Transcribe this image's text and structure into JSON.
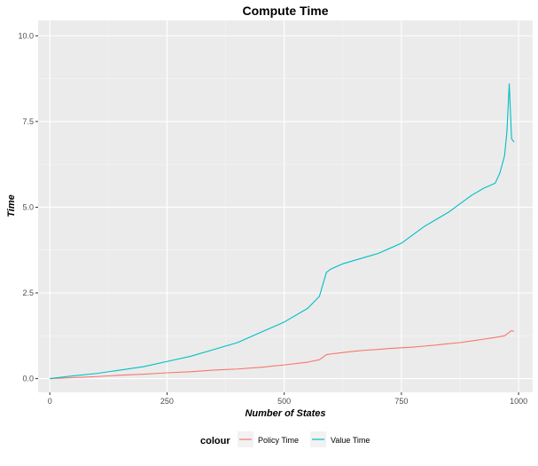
{
  "chart_data": {
    "type": "line",
    "title": "Compute Time",
    "xlabel": "Number of States",
    "ylabel": "Time",
    "xlim": [
      -25,
      1030
    ],
    "ylim": [
      -0.4,
      10.45
    ],
    "x_ticks": [
      0,
      250,
      500,
      750,
      1000
    ],
    "x_tick_labels": [
      "0",
      "250",
      "500",
      "750",
      "1000"
    ],
    "y_ticks": [
      0,
      2.5,
      5,
      7.5,
      10
    ],
    "y_tick_labels": [
      "0.0",
      "2.5",
      "5.0",
      "7.5",
      "10.0"
    ],
    "grid": true,
    "legend": {
      "title": "colour",
      "position": "bottom",
      "entries": [
        "Policy Time",
        "Value Time"
      ]
    },
    "series": [
      {
        "name": "Policy Time",
        "color": "#F8766D",
        "x": [
          0,
          50,
          100,
          150,
          200,
          250,
          300,
          350,
          400,
          450,
          500,
          550,
          575,
          590,
          600,
          625,
          650,
          675,
          700,
          725,
          750,
          775,
          800,
          825,
          850,
          875,
          900,
          925,
          950,
          970,
          980,
          985,
          990
        ],
        "y": [
          0,
          0.03,
          0.06,
          0.1,
          0.13,
          0.17,
          0.2,
          0.25,
          0.28,
          0.33,
          0.4,
          0.48,
          0.55,
          0.7,
          0.72,
          0.76,
          0.8,
          0.83,
          0.85,
          0.88,
          0.9,
          0.92,
          0.95,
          0.98,
          1.02,
          1.05,
          1.1,
          1.15,
          1.2,
          1.25,
          1.35,
          1.4,
          1.38
        ]
      },
      {
        "name": "Value Time",
        "color": "#00BFC4",
        "x": [
          0,
          50,
          100,
          150,
          200,
          250,
          300,
          350,
          400,
          450,
          500,
          550,
          575,
          590,
          600,
          625,
          650,
          675,
          700,
          725,
          750,
          775,
          800,
          825,
          850,
          875,
          900,
          925,
          950,
          960,
          970,
          975,
          980,
          985,
          990
        ],
        "y": [
          0,
          0.08,
          0.15,
          0.25,
          0.35,
          0.5,
          0.65,
          0.85,
          1.05,
          1.35,
          1.65,
          2.05,
          2.4,
          3.1,
          3.2,
          3.35,
          3.45,
          3.55,
          3.65,
          3.8,
          3.95,
          4.2,
          4.45,
          4.65,
          4.85,
          5.1,
          5.35,
          5.55,
          5.7,
          6.0,
          6.5,
          7.2,
          8.6,
          7.0,
          6.9
        ]
      }
    ]
  }
}
